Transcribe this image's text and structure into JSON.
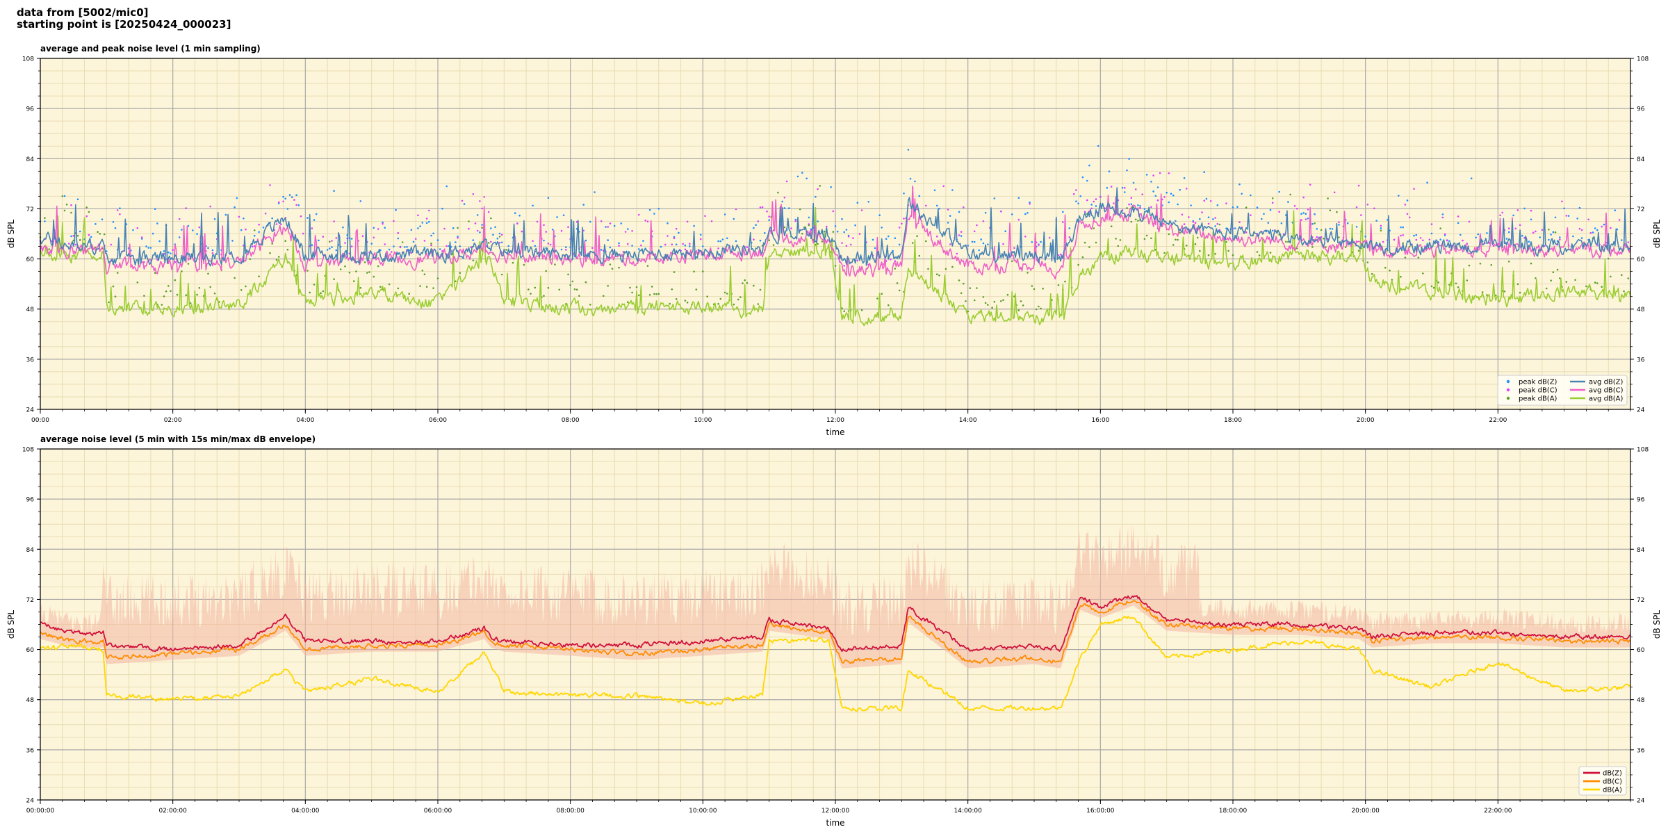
{
  "header": {
    "line1": "data from [5002/mic0]",
    "line2": "starting point is [20250424_000023]"
  },
  "colors": {
    "plot_bg": "#fdf5d9",
    "grid_major": "#a9a9a9",
    "grid_minor": "#e8dcb4",
    "z": "#4682b4",
    "z_peak": "#1e90ff",
    "c": "#ee5fc8",
    "c_peak": "#e040fb",
    "a": "#9acd32",
    "a_peak": "#5aa02c",
    "z2": "#d0103a",
    "c2": "#ff8c00",
    "a2": "#ffd700",
    "envelope": "#f4b7a4"
  },
  "chart_data": [
    {
      "type": "line",
      "title": "average and peak noise level (1 min sampling)",
      "xlabel": "time",
      "ylabel": "dB SPL",
      "ylim": [
        24,
        108
      ],
      "yticks": [
        "24",
        "36",
        "48",
        "60",
        "72",
        "84",
        "96",
        "108"
      ],
      "xlim_hours": [
        0,
        24
      ],
      "xticks": [
        "00:00",
        "02:00",
        "04:00",
        "06:00",
        "08:00",
        "10:00",
        "12:00",
        "14:00",
        "16:00",
        "18:00",
        "20:00",
        "22:00"
      ],
      "grid": true,
      "legend_position": "bottom-right",
      "legend": [
        "peak dB(Z)",
        "peak dB(C)",
        "peak dB(A)",
        "avg dB(Z)",
        "avg dB(C)",
        "avg dB(A)"
      ],
      "x_hours": [
        0,
        0.5,
        0.95,
        1.0,
        2,
        3,
        3.7,
        4,
        5,
        6,
        6.7,
        6.8,
        7,
        8,
        9,
        10,
        10.9,
        11.0,
        11.9,
        12.1,
        13,
        13.1,
        14,
        15,
        15.4,
        15.7,
        16,
        16.5,
        17,
        18,
        19,
        19.9,
        20.1,
        21,
        22,
        23,
        24
      ],
      "series": [
        {
          "name": "avg dB(Z)",
          "values": [
            65,
            63,
            63,
            60,
            60,
            61,
            70,
            61,
            61,
            61,
            63,
            63,
            62,
            61,
            61,
            62,
            63,
            66,
            66,
            60,
            61,
            74,
            61,
            61,
            59,
            70,
            72,
            72,
            68,
            66,
            65,
            64,
            63,
            63,
            63,
            63,
            63
          ]
        },
        {
          "name": "avg dB(C)",
          "values": [
            63,
            62,
            62,
            58,
            58,
            59,
            68,
            59,
            60,
            60,
            62,
            62,
            61,
            60,
            60,
            61,
            62,
            65,
            65,
            57,
            58,
            70,
            58,
            59,
            57,
            68,
            70,
            71,
            67,
            65,
            64,
            63,
            62,
            62,
            62,
            62,
            62
          ]
        },
        {
          "name": "avg dB(A)",
          "values": [
            61,
            61,
            61,
            48,
            48,
            49,
            60,
            50,
            52,
            49,
            60,
            60,
            50,
            48,
            48,
            48,
            48,
            62,
            62,
            46,
            47,
            58,
            46,
            46,
            46,
            56,
            60,
            62,
            60,
            59,
            61,
            60,
            55,
            52,
            50,
            52,
            51
          ]
        }
      ]
    },
    {
      "type": "line",
      "title": "average noise level (5 min with 15s min/max dB envelope)",
      "xlabel": "time",
      "ylabel": "dB SPL",
      "ylim": [
        24,
        108
      ],
      "yticks": [
        "24",
        "36",
        "48",
        "60",
        "72",
        "84",
        "96",
        "108"
      ],
      "xlim_hours": [
        0,
        24
      ],
      "xticks": [
        "00:00:00",
        "02:00:00",
        "04:00:00",
        "06:00:00",
        "08:00:00",
        "10:00:00",
        "12:00:00",
        "14:00:00",
        "16:00:00",
        "18:00:00",
        "20:00:00",
        "22:00:00"
      ],
      "grid": true,
      "legend_position": "bottom-right",
      "legend": [
        "dB(Z)",
        "dB(C)",
        "dB(A)"
      ],
      "x_hours": [
        0,
        0.5,
        0.95,
        1.0,
        2,
        3,
        3.7,
        4,
        5,
        6,
        6.7,
        6.8,
        7,
        8,
        9,
        10,
        10.9,
        11.0,
        11.9,
        12.1,
        13,
        13.1,
        14,
        15,
        15.4,
        15.7,
        16,
        16.5,
        17,
        18,
        19,
        19.9,
        20.1,
        21,
        22,
        23,
        24
      ],
      "series": [
        {
          "name": "dB(Z)",
          "values": [
            66,
            64,
            64,
            61,
            60,
            61,
            68,
            62,
            62,
            62,
            65,
            63,
            62,
            61,
            61,
            62,
            63,
            67,
            65,
            60,
            61,
            70,
            60,
            61,
            60,
            73,
            70,
            73,
            67,
            66,
            66,
            65,
            63,
            64,
            64,
            63,
            63
          ]
        },
        {
          "name": "dB(C)",
          "values": [
            64,
            62,
            62,
            58,
            59,
            60,
            66,
            60,
            61,
            61,
            64,
            62,
            61,
            60,
            59,
            60,
            61,
            66,
            64,
            57,
            58,
            68,
            57,
            58,
            57,
            71,
            69,
            72,
            66,
            65,
            65,
            64,
            62,
            63,
            63,
            62,
            62
          ]
        },
        {
          "name": "dB(A)",
          "values": [
            60,
            61,
            60,
            49,
            48,
            49,
            55,
            50,
            53,
            50,
            59,
            56,
            50,
            49,
            49,
            47,
            49,
            62,
            62,
            46,
            46,
            55,
            46,
            46,
            46,
            58,
            66,
            68,
            58,
            60,
            62,
            60,
            55,
            51,
            57,
            50,
            51
          ]
        }
      ]
    }
  ]
}
